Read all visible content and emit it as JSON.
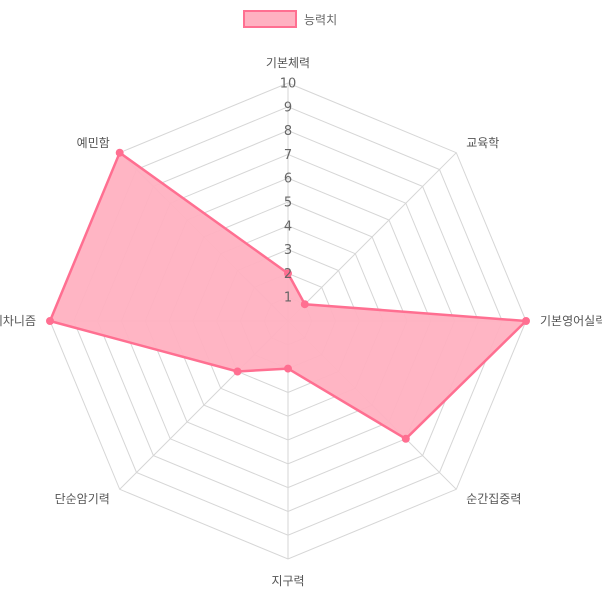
{
  "chart_data": {
    "type": "radar",
    "title": "",
    "axes": [
      "기본체력",
      "교육학",
      "기본영어실력",
      "순간집중력",
      "지구력",
      "단순암기력",
      "귀차니즘",
      "예민함"
    ],
    "rmin": 0,
    "rmax": 10,
    "ticks": [
      "1",
      "2",
      "3",
      "4",
      "5",
      "6",
      "7",
      "8",
      "9",
      "10"
    ],
    "grid": true,
    "legend_position": "top-center",
    "series": [
      {
        "name": "능력치",
        "values": [
          2,
          1,
          10,
          7,
          2,
          3,
          10,
          10
        ],
        "fill": "#ffb1c1",
        "stroke": "#ff6f91"
      }
    ]
  }
}
